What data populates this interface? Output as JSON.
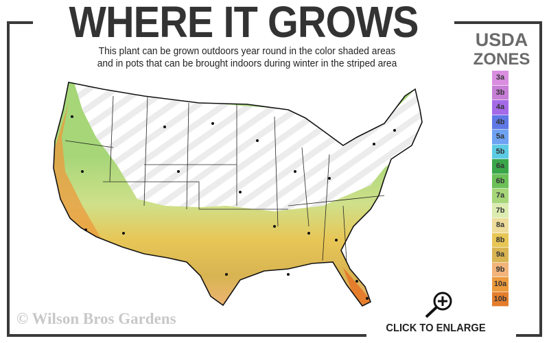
{
  "title": "WHERE IT GROWS",
  "subtitle_line1": "This plant can be grown outdoors year round in the color shaded areas",
  "subtitle_line2": "and in pots that can be brought indoors during winter in the striped area",
  "legend": {
    "title_line1": "USDA",
    "title_line2": "ZONES",
    "zones": [
      {
        "label": "3a",
        "color": "#d98ee0"
      },
      {
        "label": "3b",
        "color": "#c77ed6"
      },
      {
        "label": "4a",
        "color": "#a46ae8"
      },
      {
        "label": "4b",
        "color": "#5f78e6"
      },
      {
        "label": "5a",
        "color": "#6ea2f2"
      },
      {
        "label": "5b",
        "color": "#5ccbe3"
      },
      {
        "label": "6a",
        "color": "#3aa64a"
      },
      {
        "label": "6b",
        "color": "#6cc058"
      },
      {
        "label": "7a",
        "color": "#a6d678"
      },
      {
        "label": "7b",
        "color": "#dcebb0"
      },
      {
        "label": "8a",
        "color": "#eedc9a"
      },
      {
        "label": "8b",
        "color": "#e8c656"
      },
      {
        "label": "9a",
        "color": "#d8b452"
      },
      {
        "label": "9b",
        "color": "#f2b47a"
      },
      {
        "label": "10a",
        "color": "#ec9a3c"
      },
      {
        "label": "10b",
        "color": "#e47e2c"
      }
    ]
  },
  "copyright": "© Wilson Bros Gardens",
  "enlarge_label": "CLICK TO ENLARGE",
  "icons": {
    "enlarge": "magnifier-plus-icon"
  }
}
